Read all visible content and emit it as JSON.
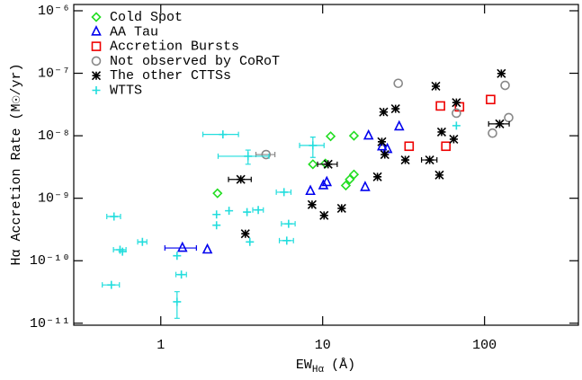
{
  "chart_data": {
    "type": "scatter",
    "x_label": {
      "main": "EW",
      "sub": "Hα",
      "unit": "(Å)"
    },
    "y_label": "Hα Accretion Rate (M☉/yr)",
    "x_log": true,
    "y_log": true,
    "xlim": [
      0.29,
      380
    ],
    "ylim": [
      9.3e-12,
      1.26e-06
    ],
    "xticks": [
      1,
      10,
      100
    ],
    "yticks": [
      {
        "value": 1e-11,
        "label": "10⁻¹¹"
      },
      {
        "value": 1e-10,
        "label": "10⁻¹⁰"
      },
      {
        "value": 1e-09,
        "label": "10⁻⁹"
      },
      {
        "value": 1e-08,
        "label": "10⁻⁸"
      },
      {
        "value": 1e-07,
        "label": "10⁻⁷"
      },
      {
        "value": 1e-06,
        "label": "10⁻⁶"
      }
    ],
    "legend": "upper left",
    "series": [
      {
        "name": "Cold Spot",
        "color": "#22dd22",
        "marker": "diamond",
        "x": [
          11.2,
          15.6,
          8.7,
          10.4,
          15.6,
          14.7,
          13.9,
          2.24
        ],
        "values": [
          9.8e-09,
          1e-08,
          3.5e-09,
          3.6e-09,
          2.4e-09,
          2e-09,
          1.6e-09,
          1.2e-09
        ]
      },
      {
        "name": "AA Tau",
        "color": "#0000ee",
        "marker": "triangle",
        "x": [
          19.2,
          29.7,
          8.4,
          10.1,
          10.6,
          18.3,
          23.3,
          25.1,
          1.36,
          1.94
        ],
        "values": [
          1e-08,
          1.4e-08,
          1.3e-09,
          1.6e-09,
          1.8e-09,
          1.5e-09,
          6.7e-09,
          6.1e-09,
          1.6e-10,
          1.5e-10
        ],
        "xerr": [
          null,
          null,
          null,
          null,
          null,
          null,
          null,
          null,
          0.3,
          null
        ]
      },
      {
        "name": "Accretion Bursts",
        "color": "#ee0000",
        "marker": "square",
        "x": [
          53.4,
          70,
          109,
          34.2,
          57.7
        ],
        "values": [
          3e-08,
          2.9e-08,
          3.8e-08,
          6.8e-09,
          6.8e-09
        ]
      },
      {
        "name": "Not observed by CoRoT",
        "color": "#888888",
        "marker": "circle",
        "x": [
          29.3,
          4.47,
          134,
          67,
          141,
          112
        ],
        "values": [
          6.9e-08,
          5e-09,
          6.4e-08,
          2.3e-08,
          1.95e-08,
          1.1e-08
        ],
        "xerr": [
          null,
          0.6,
          null,
          null,
          null,
          null
        ]
      },
      {
        "name": "The other CTTSs",
        "color": "#000000",
        "marker": "asterisk",
        "x": [
          127,
          50,
          67,
          28.2,
          23.8,
          54.3,
          64.5,
          124,
          23.2,
          24.2,
          32.4,
          45.8,
          52.6,
          21.8,
          10.8,
          3.12,
          8.6,
          10.2,
          13.1,
          3.33
        ],
        "values": [
          9.9e-08,
          6.2e-08,
          3.4e-08,
          2.7e-08,
          2.4e-08,
          1.15e-08,
          8.8e-09,
          1.55e-08,
          8e-09,
          5e-09,
          4.1e-09,
          4.1e-09,
          2.35e-09,
          2.2e-09,
          3.5e-09,
          2e-09,
          7.9e-10,
          5.3e-10,
          6.9e-10,
          2.7e-10
        ],
        "xerr": [
          null,
          null,
          null,
          null,
          null,
          null,
          null,
          18,
          null,
          null,
          null,
          5,
          null,
          null,
          1.5,
          0.5,
          null,
          null,
          null,
          null
        ]
      },
      {
        "name": "WTTS",
        "color": "#22dddd",
        "marker": "plus",
        "x": [
          0.495,
          0.514,
          0.56,
          0.58,
          0.77,
          1.26,
          1.34,
          1.26,
          2.21,
          2.21,
          2.64,
          3.41,
          4.0,
          3.55,
          3.46,
          2.42,
          5.77,
          6.16,
          6.0,
          8.7,
          67
        ],
        "values": [
          4.1e-11,
          5.1e-10,
          1.5e-10,
          1.4e-10,
          2e-10,
          1.2e-10,
          6e-11,
          2.2e-11,
          5.5e-10,
          3.7e-10,
          6.3e-10,
          6e-10,
          6.5e-10,
          2e-10,
          4.7e-09,
          1.05e-08,
          1.25e-09,
          3.9e-10,
          2.1e-10,
          7e-09,
          1.45e-08
        ],
        "xerr": [
          0.06,
          0.05,
          0.05,
          null,
          0.05,
          null,
          0.1,
          null,
          null,
          null,
          null,
          null,
          0.3,
          null,
          1.2,
          0.6,
          0.6,
          0.6,
          0.6,
          1.5,
          null
        ],
        "yerr": [
          null,
          null,
          null,
          null,
          null,
          null,
          null,
          1e-11,
          null,
          null,
          null,
          null,
          null,
          null,
          1.2e-09,
          null,
          null,
          null,
          null,
          2.5e-09,
          null
        ]
      }
    ]
  }
}
